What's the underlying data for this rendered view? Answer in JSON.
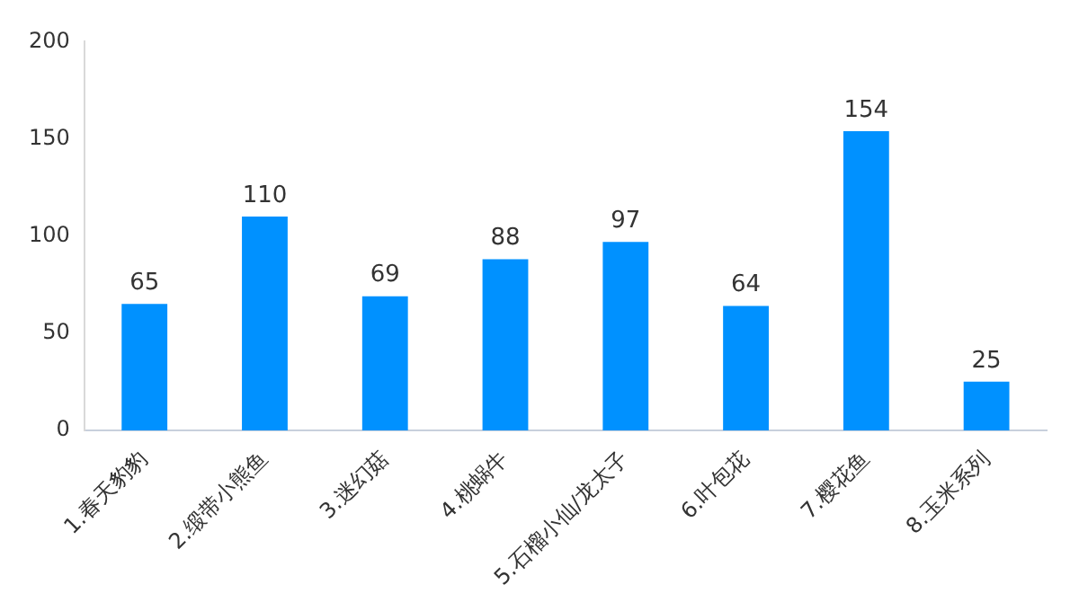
{
  "chart_data": {
    "type": "bar",
    "categories": [
      "1.春天豹豹",
      "2.缎带小熊鱼",
      "3.迷幻菇",
      "4.桃蜗牛",
      "5.石榴小仙/龙太子",
      "6.叶包花",
      "7.樱花鱼",
      "8.玉米系列"
    ],
    "values": [
      65,
      110,
      69,
      88,
      97,
      64,
      154,
      25
    ],
    "color": "#0091ff",
    "ylim": [
      0,
      200
    ],
    "yticks": [
      0,
      50,
      100,
      150,
      200
    ],
    "grid": false,
    "data_labels": true,
    "legend": false
  }
}
